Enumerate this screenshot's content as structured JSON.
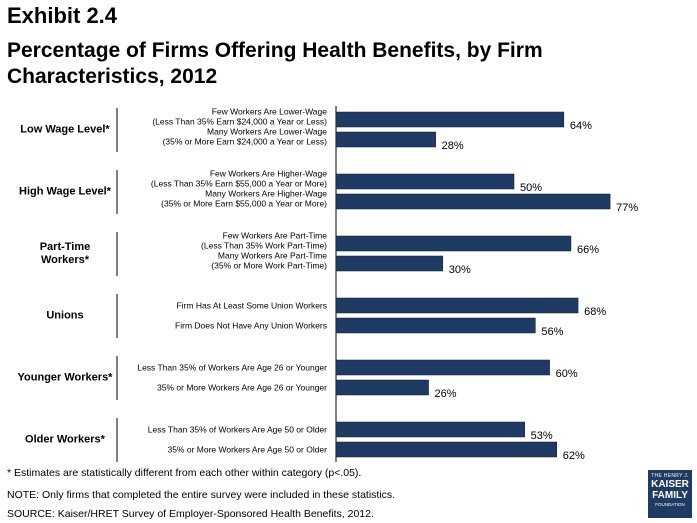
{
  "header": {
    "exhibit": "Exhibit 2.4",
    "title_line1": "Percentage of Firms Offering Health Benefits, by Firm",
    "title_line2": "Characteristics, 2012"
  },
  "chart_data": {
    "type": "bar",
    "orientation": "horizontal",
    "xlim": [
      0,
      100
    ],
    "bar_color": "#1f3b63",
    "value_suffix": "%",
    "groups": [
      {
        "label": [
          "Low Wage Level*"
        ],
        "bars": [
          {
            "label": [
              "Few Workers Are Lower-Wage",
              "(Less Than 35% Earn $24,000 a Year or Less)"
            ],
            "value": 64
          },
          {
            "label": [
              "Many Workers Are Lower-Wage",
              "(35% or More Earn $24,000 a Year or Less)"
            ],
            "value": 28
          }
        ]
      },
      {
        "label": [
          "High Wage Level*"
        ],
        "bars": [
          {
            "label": [
              "Few Workers Are Higher-Wage",
              "(Less Than 35% Earn $55,000 a Year or More)"
            ],
            "value": 50
          },
          {
            "label": [
              "Many Workers Are Higher-Wage",
              "(35% or More Earn $55,000 a Year or More)"
            ],
            "value": 77
          }
        ]
      },
      {
        "label": [
          "Part-Time",
          "Workers*"
        ],
        "bars": [
          {
            "label": [
              "Few Workers Are Part-Time",
              "(Less Than 35% Work Part-Time)"
            ],
            "value": 66
          },
          {
            "label": [
              "Many Workers Are Part-Time",
              "(35% or More Work Part-Time)"
            ],
            "value": 30
          }
        ]
      },
      {
        "label": [
          "Unions"
        ],
        "bars": [
          {
            "label": [
              "Firm Has At Least Some Union Workers"
            ],
            "value": 68
          },
          {
            "label": [
              "Firm Does Not Have Any Union Workers"
            ],
            "value": 56
          }
        ]
      },
      {
        "label": [
          "Younger Workers*"
        ],
        "bars": [
          {
            "label": [
              "Less Than 35% of Workers Are Age 26 or Younger"
            ],
            "value": 60
          },
          {
            "label": [
              "35% or More Workers Are Age 26 or Younger"
            ],
            "value": 26
          }
        ]
      },
      {
        "label": [
          "Older Workers*"
        ],
        "bars": [
          {
            "label": [
              "Less Than 35% of Workers Are Age 50 or Older"
            ],
            "value": 53
          },
          {
            "label": [
              "35% or More Workers Are Age 50 or Older"
            ],
            "value": 62
          }
        ]
      }
    ]
  },
  "footnotes": {
    "note1": "* Estimates are statistically different from each other within category (p<.05).",
    "note2": "NOTE: Only firms that completed the entire survey were included in these statistics.",
    "source": "SOURCE: Kaiser/HRET Survey of Employer-Sponsored Health Benefits, 2012."
  },
  "logo": {
    "line1": "THE HENRY J.",
    "line2": "KAISER",
    "line3": "FAMILY",
    "line4": "FOUNDATION"
  }
}
